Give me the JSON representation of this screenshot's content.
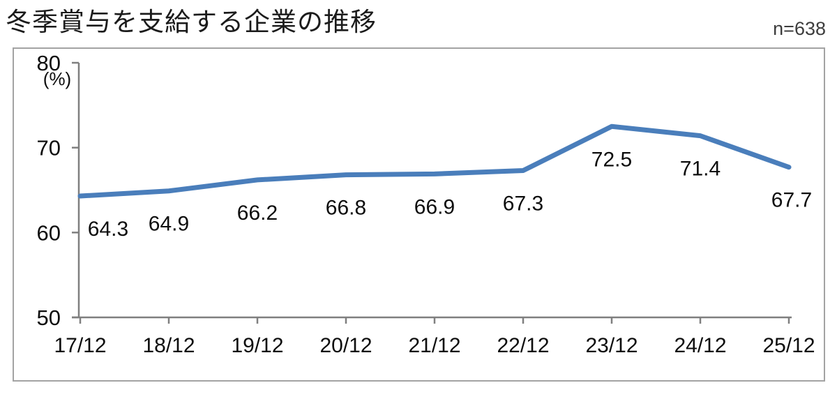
{
  "page": {
    "title": "冬季賞与を支給する企業の推移",
    "sample_size_label": "n=638"
  },
  "chart_data": {
    "type": "line",
    "title": "冬季賞与を支給する企業の推移",
    "sample_size": "n=638",
    "unit_label": "(%)",
    "categories": [
      "17/12",
      "18/12",
      "19/12",
      "20/12",
      "21/12",
      "22/12",
      "23/12",
      "24/12",
      "25/12"
    ],
    "series": [
      {
        "name": "冬季賞与を支給する企業",
        "values": [
          64.3,
          64.9,
          66.2,
          66.8,
          66.9,
          67.3,
          72.5,
          71.4,
          67.7
        ]
      }
    ],
    "xlabel": "",
    "ylabel": "(%)",
    "ylim": [
      50,
      80
    ],
    "yticks": [
      50,
      60,
      70,
      80
    ],
    "grid": "off",
    "legend": "none",
    "data_labels": "below-points",
    "line_color": "#4A7EBB",
    "axis_color": "#7f7f7f",
    "label_color": "#0d0d0d",
    "frame_color": "#a3a3a3"
  }
}
